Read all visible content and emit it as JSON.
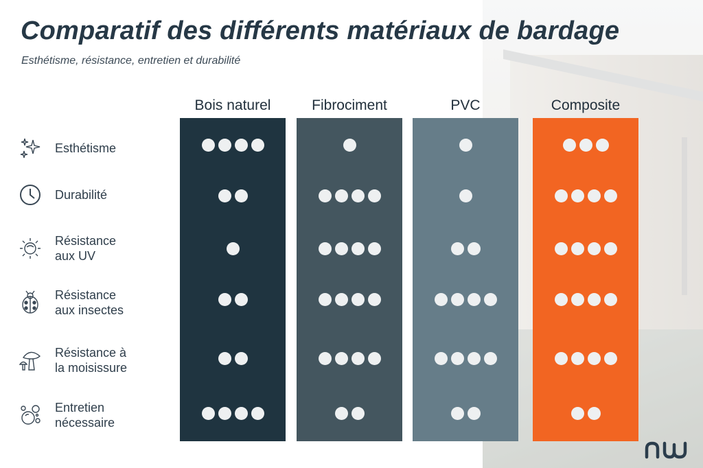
{
  "title": "Comparatif des différents matériaux de bardage",
  "subtitle": "Esthétisme, résistance, entretien et durabilité",
  "brand_logo_text": "nw",
  "colors": {
    "Bois naturel": "#1f3440",
    "Fibrociment": "#44565f",
    "PVC": "#667d89",
    "Composite": "#f26522"
  },
  "row_labels": [
    {
      "line1": "Esthétisme",
      "line2": "",
      "icon": "sparkles-icon"
    },
    {
      "line1": "Durabilité",
      "line2": "",
      "icon": "clock-icon"
    },
    {
      "line1": "Résistance",
      "line2": "aux UV",
      "icon": "sun-icon"
    },
    {
      "line1": "Résistance",
      "line2": "aux insectes",
      "icon": "ladybug-icon"
    },
    {
      "line1": "Résistance à",
      "line2": "la moisissure",
      "icon": "mushroom-icon"
    },
    {
      "line1": "Entretien",
      "line2": "nécessaire",
      "icon": "bubbles-icon"
    }
  ],
  "chart_data": {
    "type": "table",
    "columns": [
      "Bois naturel",
      "Fibrociment",
      "PVC",
      "Composite"
    ],
    "rows": [
      "Esthétisme",
      "Durabilité",
      "Résistance aux UV",
      "Résistance aux insectes",
      "Résistance à la moisissure",
      "Entretien nécessaire"
    ],
    "scale_max": 4,
    "values": {
      "Bois naturel": [
        4,
        2,
        1,
        2,
        2,
        4
      ],
      "Fibrociment": [
        1,
        4,
        4,
        4,
        4,
        2
      ],
      "PVC": [
        1,
        1,
        2,
        4,
        4,
        2
      ],
      "Composite": [
        3,
        4,
        4,
        4,
        4,
        2
      ]
    }
  }
}
